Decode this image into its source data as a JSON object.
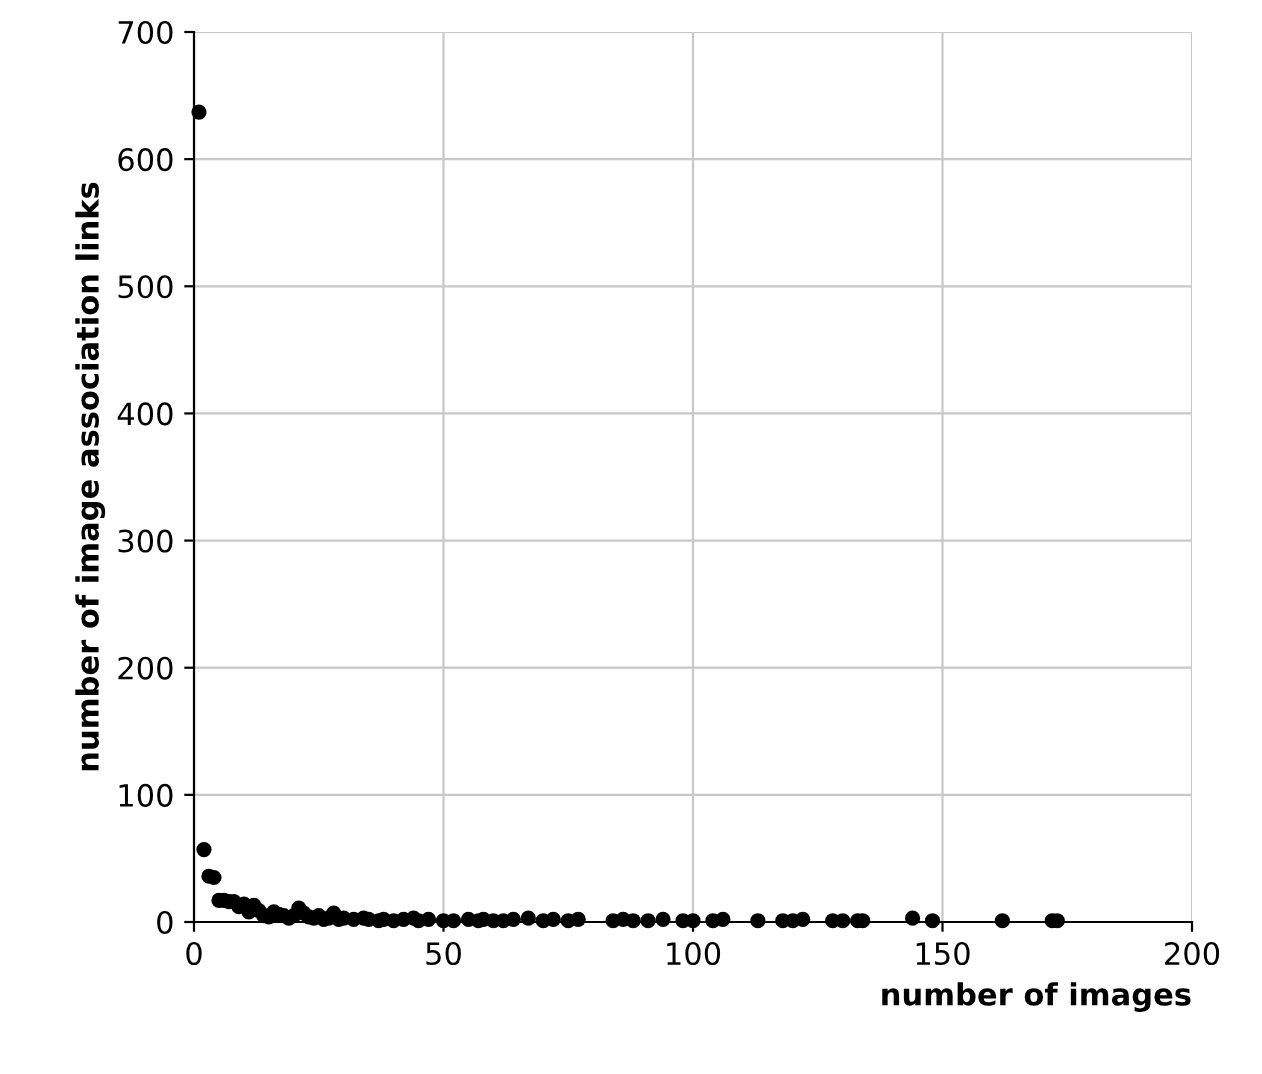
{
  "chart_data": {
    "type": "scatter",
    "xlabel": "number of images",
    "ylabel": "number of image association links",
    "x": [
      1,
      2,
      3,
      4,
      5,
      6,
      7,
      8,
      9,
      10,
      11,
      12,
      13,
      14,
      15,
      16,
      17,
      18,
      19,
      20,
      21,
      22,
      23,
      24,
      25,
      26,
      27,
      28,
      29,
      30,
      32,
      34,
      35,
      37,
      38,
      40,
      42,
      44,
      45,
      47,
      50,
      52,
      55,
      57,
      58,
      60,
      62,
      64,
      67,
      70,
      72,
      75,
      77,
      84,
      86,
      88,
      91,
      94,
      98,
      100,
      104,
      106,
      113,
      118,
      120,
      122,
      128,
      130,
      133,
      134,
      144,
      148,
      162,
      172,
      173
    ],
    "series": [
      {
        "color": "#000000",
        "values": [
          637,
          57,
          36,
          35,
          17,
          17,
          16,
          16,
          12,
          14,
          8,
          13,
          9,
          5,
          4,
          8,
          6,
          5,
          3,
          5,
          11,
          7,
          4,
          3,
          5,
          2,
          3,
          7,
          2,
          3,
          2,
          3,
          2,
          1,
          2,
          1,
          2,
          3,
          1,
          2,
          1,
          1,
          2,
          1,
          2,
          1,
          1,
          2,
          3,
          1,
          2,
          1,
          2,
          1,
          2,
          1,
          1,
          2,
          1,
          1,
          1,
          2,
          1,
          1,
          1,
          2,
          1,
          1,
          1,
          1,
          3,
          1,
          1,
          1,
          1
        ]
      }
    ],
    "xlim": [
      0,
      200
    ],
    "ylim": [
      0,
      700
    ],
    "xticks": [
      0,
      50,
      100,
      150,
      200
    ],
    "yticks": [
      0,
      100,
      200,
      300,
      400,
      500,
      600,
      700
    ],
    "grid": true,
    "marker": "circle",
    "legend": false
  }
}
